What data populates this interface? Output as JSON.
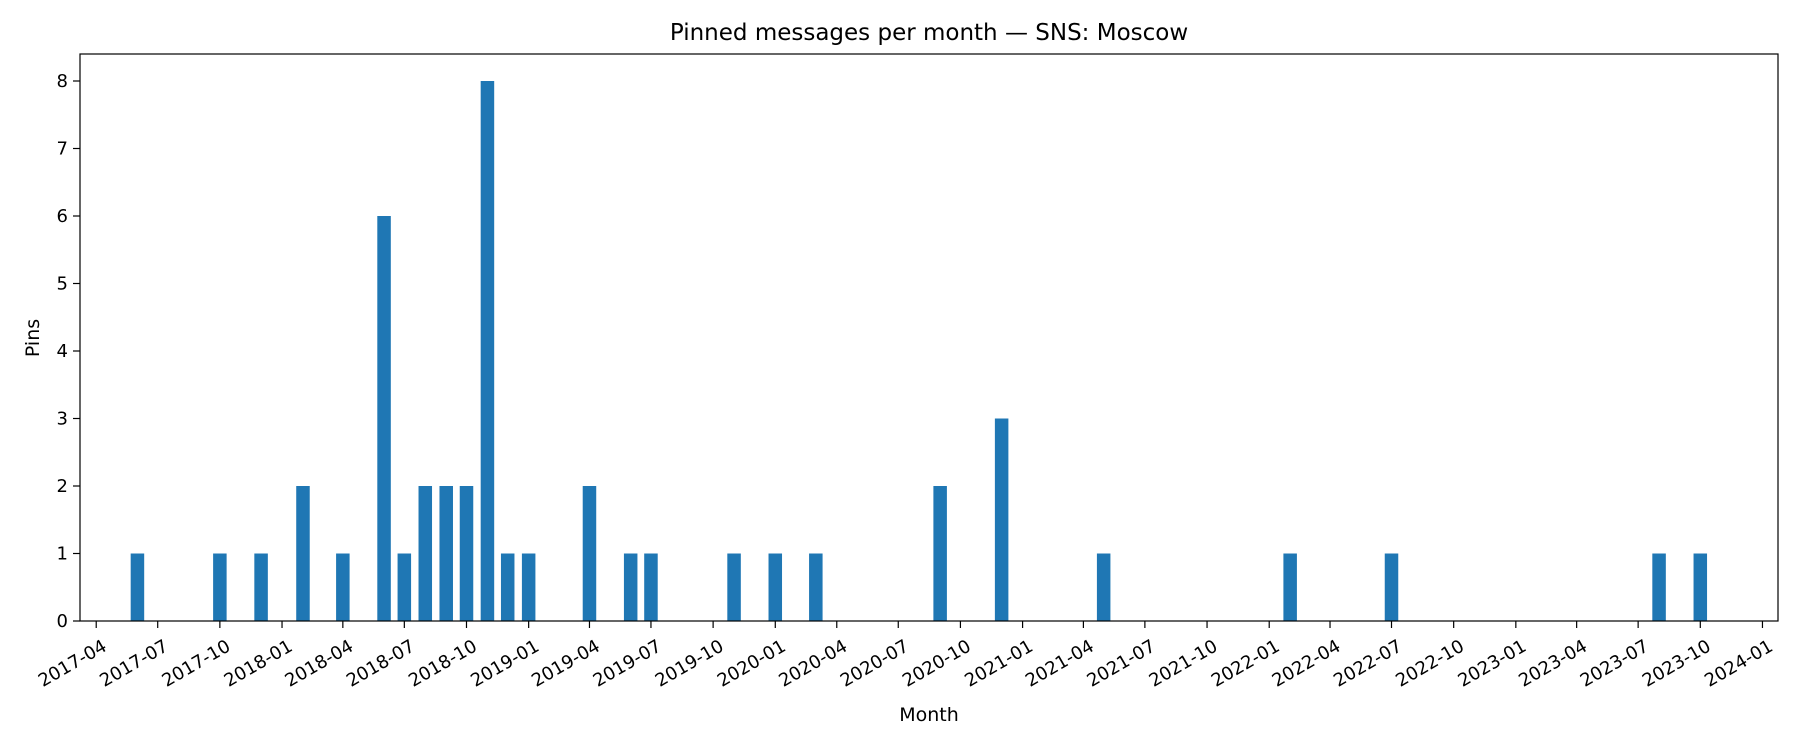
{
  "chart_data": {
    "type": "bar",
    "title": "Pinned messages per month — SNS: Moscow",
    "xlabel": "Month",
    "ylabel": "Pins",
    "bar_color": "#1f77b4",
    "grid": false,
    "ylim": [
      0,
      8.4
    ],
    "yticks": [
      0,
      1,
      2,
      3,
      4,
      5,
      6,
      7,
      8
    ],
    "xlim": [
      "2017-03-08",
      "2024-01-24"
    ],
    "xticks": [
      "2017-04",
      "2017-07",
      "2017-10",
      "2018-01",
      "2018-04",
      "2018-07",
      "2018-10",
      "2019-01",
      "2019-04",
      "2019-07",
      "2019-10",
      "2020-01",
      "2020-04",
      "2020-07",
      "2020-10",
      "2021-01",
      "2021-04",
      "2021-07",
      "2021-10",
      "2022-01",
      "2022-04",
      "2022-07",
      "2022-10",
      "2023-01",
      "2023-04",
      "2023-07",
      "2023-10",
      "2024-01"
    ],
    "x": [
      "2017-06",
      "2017-10",
      "2017-12",
      "2018-02",
      "2018-04",
      "2018-06",
      "2018-07",
      "2018-08",
      "2018-09",
      "2018-10",
      "2018-11",
      "2018-12",
      "2019-01",
      "2019-04",
      "2019-06",
      "2019-07",
      "2019-11",
      "2020-01",
      "2020-03",
      "2020-09",
      "2020-12",
      "2021-05",
      "2022-02",
      "2022-07",
      "2023-08",
      "2023-10"
    ],
    "values": [
      1,
      1,
      1,
      2,
      1,
      6,
      1,
      2,
      2,
      2,
      8,
      1,
      1,
      2,
      1,
      1,
      1,
      1,
      1,
      2,
      3,
      1,
      1,
      1,
      1,
      1
    ]
  }
}
